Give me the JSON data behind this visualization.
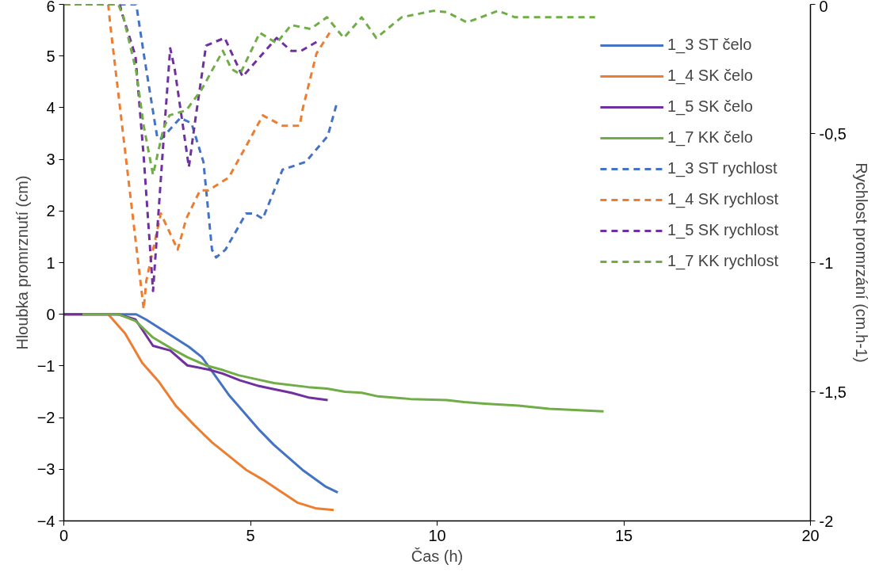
{
  "chart_data": {
    "type": "line",
    "xlabel": "Čas (h)",
    "ylabel": "Hloubka promrznutí (cm)",
    "y2label": "Rychlost promrzání (cm.h-1)",
    "xlim": [
      0,
      20
    ],
    "xticks": [
      0,
      5,
      10,
      15,
      20
    ],
    "ylim": [
      -4,
      6
    ],
    "yticks": [
      -4,
      -3,
      -2,
      -1,
      0,
      1,
      2,
      3,
      4,
      5,
      6
    ],
    "y2lim": [
      -2,
      0
    ],
    "y2ticks": [
      {
        "value": -2,
        "label": "-2"
      },
      {
        "value": -1.5,
        "label": "-1,5"
      },
      {
        "value": -1,
        "label": "-1"
      },
      {
        "value": -0.5,
        "label": "-0,5"
      },
      {
        "value": 0,
        "label": "0"
      }
    ],
    "grid": false,
    "legend": "top right",
    "marker": "none",
    "series": [
      {
        "name": "1_3 ST čelo",
        "color": "#4472c4",
        "line_style": "solid",
        "x": [
          0,
          1.94,
          2.2,
          3.35,
          3.7,
          4.42,
          5.25,
          5.63,
          6.39,
          7.0,
          7.34
        ],
        "values": [
          0,
          0,
          -0.1,
          -0.63,
          -0.83,
          -1.56,
          -2.25,
          -2.53,
          -3.01,
          -3.33,
          -3.45
        ]
      },
      {
        "name": "1_4 SK čelo",
        "color": "#ed7d31",
        "line_style": "solid",
        "x": [
          0,
          1.19,
          1.64,
          2.1,
          2.55,
          3.0,
          3.5,
          3.97,
          4.42,
          4.88,
          5.33,
          5.79,
          6.27,
          6.77,
          7.23
        ],
        "values": [
          0,
          0,
          -0.37,
          -0.94,
          -1.31,
          -1.77,
          -2.15,
          -2.48,
          -2.74,
          -3.01,
          -3.2,
          -3.42,
          -3.65,
          -3.76,
          -3.79
        ]
      },
      {
        "name": "1_5 SK čelo",
        "color": "#7030a0",
        "line_style": "solid",
        "x": [
          0,
          1.46,
          1.92,
          2.39,
          2.85,
          3.31,
          3.88,
          4.26,
          4.72,
          5.18,
          5.63,
          6.09,
          6.55,
          7.07
        ],
        "values": [
          0,
          0,
          -0.1,
          -0.61,
          -0.7,
          -0.99,
          -1.07,
          -1.15,
          -1.28,
          -1.38,
          -1.45,
          -1.52,
          -1.61,
          -1.66
        ]
      },
      {
        "name": "1_7 KK čelo",
        "color": "#70ad47",
        "line_style": "solid",
        "x": [
          0.5,
          1.46,
          1.92,
          2.39,
          2.9,
          3.31,
          3.81,
          4.22,
          4.68,
          5.18,
          5.63,
          6.55,
          7.05,
          7.53,
          7.98,
          8.42,
          9.28,
          10.26,
          10.72,
          11.27,
          12.18,
          13.0,
          14.46
        ],
        "values": [
          0,
          0,
          -0.13,
          -0.45,
          -0.67,
          -0.83,
          -0.99,
          -1.07,
          -1.18,
          -1.26,
          -1.33,
          -1.41,
          -1.44,
          -1.5,
          -1.52,
          -1.59,
          -1.64,
          -1.66,
          -1.7,
          -1.73,
          -1.77,
          -1.83,
          -1.88
        ]
      },
      {
        "name": "1_3 ST rychlost",
        "color": "#4472c4",
        "line_style": "dashed",
        "axis": "y2",
        "x": [
          0,
          1.94,
          2.14,
          2.44,
          2.51,
          2.62,
          3.12,
          3.42,
          3.74,
          3.97,
          4.08,
          4.33,
          4.88,
          5.1,
          5.33,
          5.86,
          6.48,
          7.07,
          7.3
        ],
        "values": [
          0,
          0,
          -0.19,
          -0.46,
          -0.52,
          -0.52,
          -0.44,
          -0.46,
          -0.61,
          -0.95,
          -0.98,
          -0.95,
          -0.81,
          -0.81,
          -0.83,
          -0.64,
          -0.61,
          -0.51,
          -0.39
        ]
      },
      {
        "name": "1_4 SK rychlost",
        "color": "#ed7d31",
        "line_style": "dashed",
        "axis": "y2",
        "x": [
          0,
          1.19,
          1.24,
          2.14,
          2.21,
          2.6,
          3.05,
          3.28,
          3.65,
          3.88,
          4.42,
          4.88,
          5.33,
          5.86,
          6.32,
          6.39,
          6.77,
          7.12
        ],
        "values": [
          0,
          0,
          -0.074,
          -1.18,
          -1.07,
          -0.81,
          -0.95,
          -0.83,
          -0.72,
          -0.72,
          -0.67,
          -0.55,
          -0.43,
          -0.47,
          -0.47,
          -0.41,
          -0.19,
          -0.11
        ]
      },
      {
        "name": "1_5 SK rychlost",
        "color": "#7030a0",
        "line_style": "dashed",
        "axis": "y2",
        "x": [
          0,
          1.5,
          1.57,
          1.92,
          2.14,
          2.39,
          2.67,
          2.85,
          2.97,
          3.35,
          3.51,
          3.81,
          3.97,
          4.31,
          4.79,
          5.7,
          6.09,
          6.36,
          6.84
        ],
        "values": [
          0,
          0,
          -0.04,
          -0.2,
          -0.59,
          -1.11,
          -0.53,
          -0.17,
          -0.25,
          -0.63,
          -0.46,
          -0.16,
          -0.15,
          -0.13,
          -0.28,
          -0.13,
          -0.18,
          -0.18,
          -0.14
        ]
      },
      {
        "name": "1_7 KK rychlost",
        "color": "#70ad47",
        "line_style": "dashed",
        "axis": "y2",
        "x": [
          0,
          1.46,
          1.6,
          1.94,
          2.14,
          2.39,
          2.67,
          2.83,
          3.28,
          3.69,
          4.26,
          4.49,
          4.72,
          5.25,
          5.7,
          6.09,
          6.61,
          7.05,
          7.5,
          7.98,
          8.37,
          9.05,
          9.9,
          10.26,
          10.8,
          11.63,
          12.09,
          14.23
        ],
        "values": [
          0,
          0,
          -0.05,
          -0.26,
          -0.47,
          -0.66,
          -0.48,
          -0.43,
          -0.41,
          -0.33,
          -0.18,
          -0.25,
          -0.27,
          -0.11,
          -0.15,
          -0.08,
          -0.095,
          -0.05,
          -0.13,
          -0.05,
          -0.13,
          -0.05,
          -0.025,
          -0.03,
          -0.07,
          -0.025,
          -0.05,
          -0.05
        ]
      }
    ]
  }
}
